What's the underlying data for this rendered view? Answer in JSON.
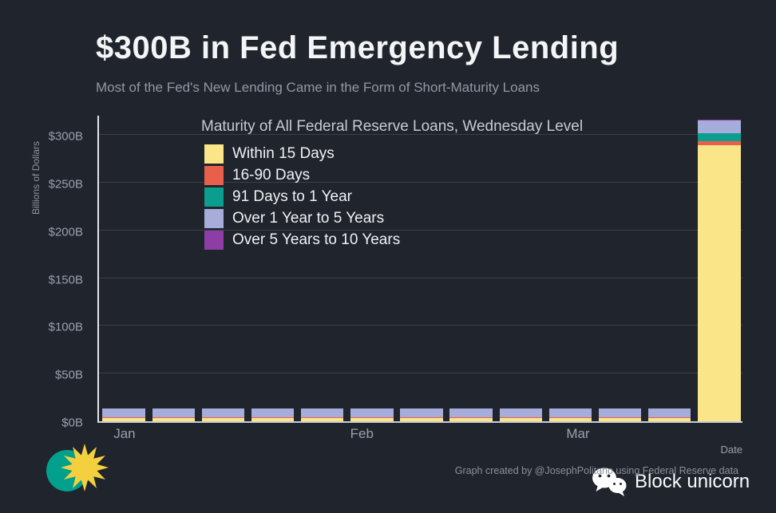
{
  "header": {
    "title": "$300B in Fed Emergency Lending",
    "subtitle": "Most of the Fed's New Lending Came in the Form of Short-Maturity Loans"
  },
  "chart_data": {
    "type": "bar",
    "stacked": true,
    "title": "Maturity of All Federal Reserve Loans, Wednesday Level",
    "xlabel": "Date",
    "ylabel": "Billions of Dollars",
    "ylim": [
      0,
      322
    ],
    "grid": true,
    "legend_position": "inside-upper-left",
    "background_color": "#20242C",
    "gridline_color": "#3A3F4A",
    "y_ticks": [
      {
        "label": "$0B",
        "value": 0
      },
      {
        "label": "$50B",
        "value": 50
      },
      {
        "label": "$100B",
        "value": 100
      },
      {
        "label": "$150B",
        "value": 150
      },
      {
        "label": "$200B",
        "value": 200
      },
      {
        "label": "$250B",
        "value": 250
      },
      {
        "label": "$300B",
        "value": 300
      }
    ],
    "x_ticks": [
      {
        "label": "Jan",
        "pos": 0.042
      },
      {
        "label": "Feb",
        "pos": 0.41
      },
      {
        "label": "Mar",
        "pos": 0.745
      }
    ],
    "series": [
      {
        "name": "Within 15 Days",
        "color": "#FAE589",
        "values": [
          3,
          3,
          3,
          3,
          3,
          3,
          3,
          3,
          3,
          3,
          3,
          3,
          289
        ]
      },
      {
        "name": "16-90 Days",
        "color": "#E8604C",
        "values": [
          1,
          1,
          1,
          1,
          1,
          1,
          1,
          1,
          1,
          1,
          1,
          1,
          5
        ]
      },
      {
        "name": "91 Days to 1 Year",
        "color": "#0B9E8E",
        "values": [
          0.5,
          0.5,
          0.5,
          0.5,
          0.5,
          0.5,
          0.5,
          0.5,
          0.5,
          0.5,
          0.5,
          0.5,
          8
        ]
      },
      {
        "name": "Over 1 Year to 5 Years",
        "color": "#A7ADDB",
        "values": [
          8.5,
          8.5,
          8.5,
          8.5,
          8.5,
          8.5,
          8.5,
          8.5,
          8.5,
          8.5,
          8.5,
          8.5,
          13
        ]
      },
      {
        "name": "Over 5 Years to 10 Years",
        "color": "#8E3DA6",
        "values": [
          0.5,
          0.5,
          0.5,
          0.5,
          0.5,
          0.5,
          0.5,
          0.5,
          0.5,
          0.5,
          0.5,
          0.5,
          1
        ]
      }
    ]
  },
  "footer": {
    "credit": "Graph created by @JosephPolitano using Federal Reserve data",
    "brand": "Block unicorn",
    "icons": {
      "sun": "sun-logo",
      "wechat": "wechat-icon"
    },
    "sun_colors": {
      "ring": "#00A08D",
      "rays": "#F4D03F"
    }
  }
}
